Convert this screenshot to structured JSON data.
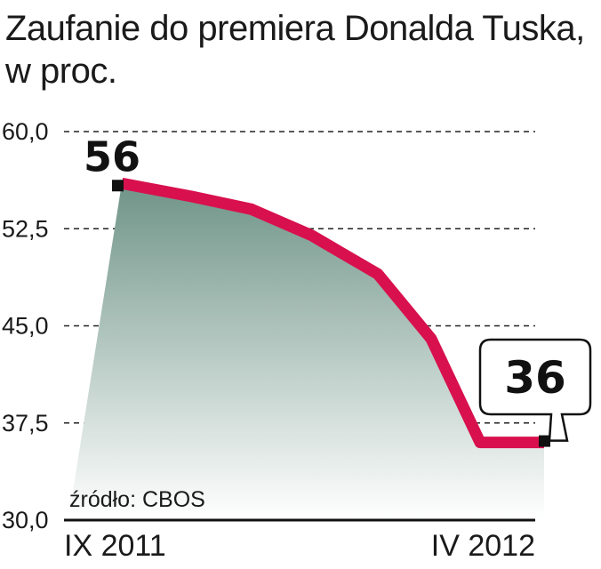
{
  "chart_data": {
    "type": "area",
    "title": "Zaufanie do premiera Donalda Tuska,",
    "subtitle": "w proc.",
    "source": "źródło: CBOS",
    "ylim": [
      30,
      60
    ],
    "y_ticks": [
      "60,0",
      "52,5",
      "45,0",
      "37,5",
      "30,0"
    ],
    "x_labels": [
      "IX 2011",
      "IV 2012"
    ],
    "start_label": "56",
    "end_label": "36",
    "points": [
      {
        "x": 0,
        "y": 56
      },
      {
        "x": 1,
        "y": 55
      },
      {
        "x": 2,
        "y": 54
      },
      {
        "x": 3,
        "y": 52
      },
      {
        "x": 4,
        "y": 49
      },
      {
        "x": 5,
        "y": 44
      },
      {
        "x": 6,
        "y": 36
      },
      {
        "x": 7,
        "y": 36
      }
    ],
    "colors": {
      "line": "#d8104e",
      "fill_top": "#6f9488",
      "fill_bottom": "#ffffff",
      "grid": "#222222"
    }
  }
}
